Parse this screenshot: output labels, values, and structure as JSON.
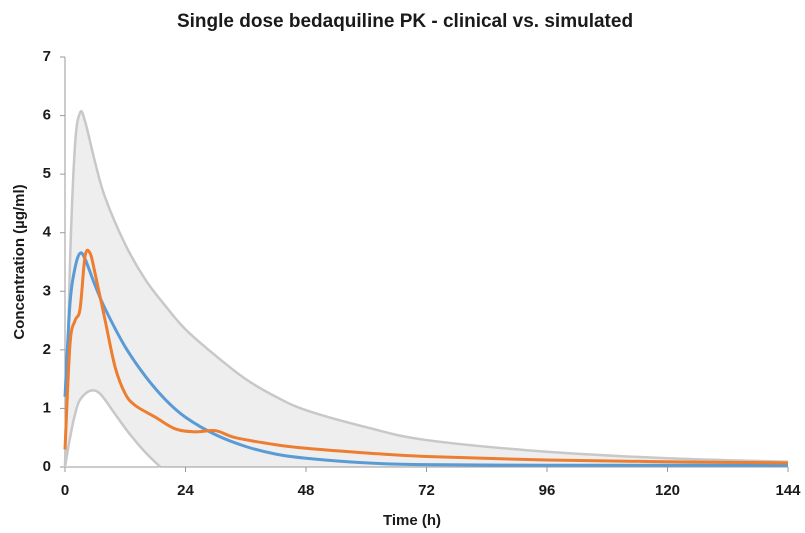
{
  "chart_data": {
    "type": "line",
    "title": "Single dose bedaquiline PK - clinical vs. simulated",
    "x_label": "Time (h)",
    "y_label": "Concentration (µg/ml)",
    "xlim": [
      0,
      144
    ],
    "xticks": [
      0,
      24,
      48,
      72,
      96,
      120,
      144
    ],
    "ylim": [
      0,
      7
    ],
    "yticks": [
      0,
      1,
      2,
      3,
      4,
      5,
      6,
      7
    ],
    "fill_between": [
      0,
      1
    ],
    "band_color": "#eeeeee",
    "series": [
      {
        "color": "#c8c8c8",
        "x": [
          0,
          1,
          2,
          3,
          4,
          6,
          8,
          12,
          16,
          20,
          24,
          30,
          36,
          42,
          48,
          60,
          72,
          96,
          120,
          144
        ],
        "values": [
          0,
          3.5,
          5.5,
          6.05,
          5.9,
          5.2,
          4.6,
          3.8,
          3.2,
          2.75,
          2.35,
          1.9,
          1.5,
          1.2,
          0.97,
          0.68,
          0.46,
          0.26,
          0.15,
          0.09
        ]
      },
      {
        "color": "#c8c8c8",
        "x": [
          0,
          1,
          2,
          3,
          5,
          7,
          10,
          13,
          16,
          19
        ],
        "values": [
          0,
          0.5,
          0.9,
          1.15,
          1.3,
          1.25,
          0.9,
          0.55,
          0.25,
          0
        ]
      },
      {
        "color": "#5b9bd5",
        "x": [
          0,
          1,
          2,
          3,
          4,
          6,
          8,
          12,
          16,
          20,
          24,
          30,
          36,
          42,
          48,
          60,
          72,
          96,
          120,
          144
        ],
        "values": [
          1.2,
          2.8,
          3.4,
          3.65,
          3.55,
          3.1,
          2.7,
          2.05,
          1.55,
          1.15,
          0.85,
          0.55,
          0.35,
          0.22,
          0.15,
          0.07,
          0.04,
          0.03,
          0.03,
          0.03
        ]
      },
      {
        "color": "#ed7d31",
        "x": [
          0,
          1,
          2,
          3,
          4,
          5,
          6,
          8,
          10,
          12,
          14,
          18,
          22,
          26,
          30,
          34,
          42,
          48,
          60,
          72,
          96,
          120,
          144
        ],
        "values": [
          0.3,
          2.1,
          2.5,
          2.7,
          3.6,
          3.65,
          3.3,
          2.5,
          1.7,
          1.25,
          1.05,
          0.85,
          0.65,
          0.6,
          0.62,
          0.5,
          0.38,
          0.32,
          0.24,
          0.18,
          0.12,
          0.09,
          0.07
        ]
      }
    ]
  }
}
